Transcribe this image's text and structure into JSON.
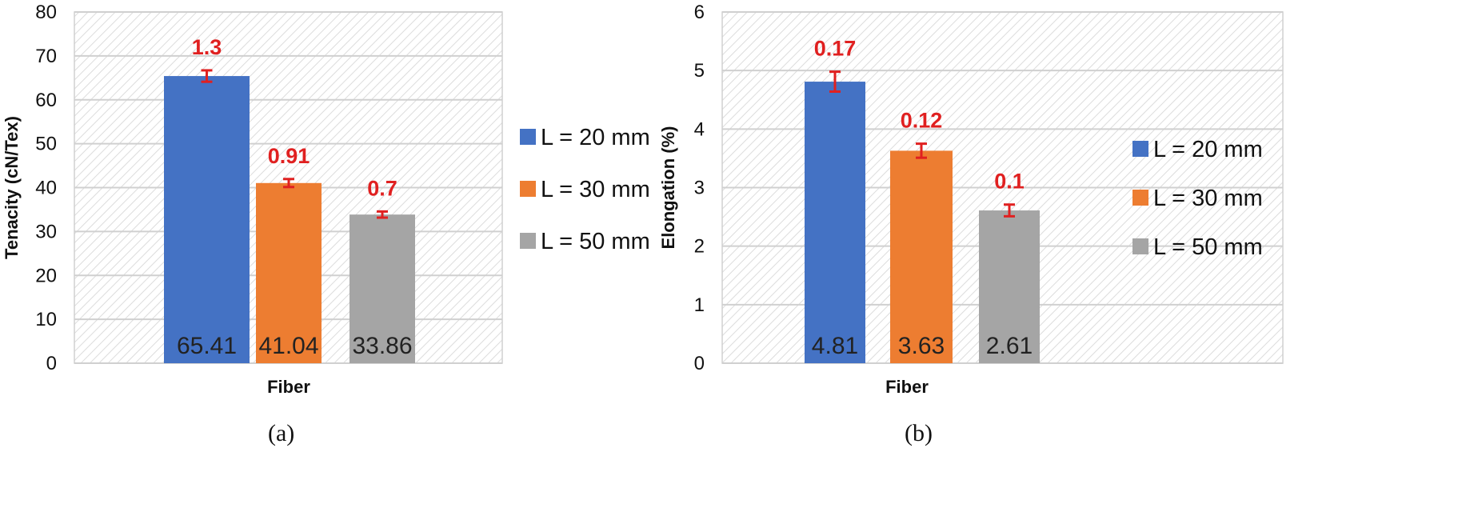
{
  "colors": {
    "error": "#e02020",
    "grid": "#d0d0d0",
    "hatch": "#dcdcdc"
  },
  "chart_data": [
    {
      "type": "bar",
      "caption": "(a)",
      "xlabel": "Fiber",
      "ylabel": "Tenacity (cN/Tex)",
      "ylim": [
        0,
        80
      ],
      "yticks": [
        0,
        10,
        20,
        30,
        40,
        50,
        60,
        70,
        80
      ],
      "grid": true,
      "legend_position": "right",
      "series": [
        {
          "name": "L = 20 mm",
          "value": 65.41,
          "value_label": "65.41",
          "error": 1.3,
          "error_label": "1.3",
          "color": "#4472c4"
        },
        {
          "name": "L = 30 mm",
          "value": 41.04,
          "value_label": "41.04",
          "error": 0.91,
          "error_label": "0.91",
          "color": "#ed7d31"
        },
        {
          "name": "L = 50 mm",
          "value": 33.86,
          "value_label": "33.86",
          "error": 0.7,
          "error_label": "0.7",
          "color": "#a5a5a5"
        }
      ]
    },
    {
      "type": "bar",
      "caption": "(b)",
      "xlabel": "Fiber",
      "ylabel": "Elongation (%)",
      "ylim": [
        0,
        6
      ],
      "yticks": [
        0,
        1,
        2,
        3,
        4,
        5,
        6
      ],
      "grid": true,
      "legend_position": "right",
      "series": [
        {
          "name": "L = 20 mm",
          "value": 4.81,
          "value_label": "4.81",
          "error": 0.17,
          "error_label": "0.17",
          "color": "#4472c4"
        },
        {
          "name": "L = 30 mm",
          "value": 3.63,
          "value_label": "3.63",
          "error": 0.12,
          "error_label": "0.12",
          "color": "#ed7d31"
        },
        {
          "name": "L = 50 mm",
          "value": 2.61,
          "value_label": "2.61",
          "error": 0.1,
          "error_label": "0.1",
          "color": "#a5a5a5"
        }
      ]
    }
  ]
}
